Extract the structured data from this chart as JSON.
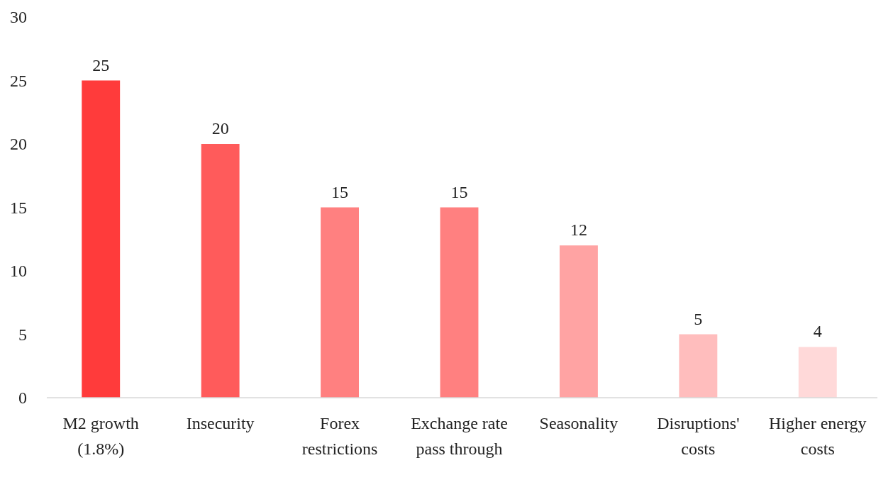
{
  "chart_data": {
    "type": "bar",
    "categories": [
      "M2 growth (1.8%)",
      "Insecurity",
      "Forex restrictions",
      "Exchange rate pass through",
      "Seasonality",
      "Disruptions' costs",
      "Higher energy costs"
    ],
    "values": [
      25,
      20,
      15,
      15,
      12,
      5,
      4
    ],
    "colors": [
      "#ff3b3b",
      "#ff5b5b",
      "#ff8080",
      "#ff8080",
      "#ffa3a3",
      "#ffbdbd",
      "#ffd9d9"
    ],
    "ylim": [
      0,
      30
    ],
    "yticks": [
      0,
      5,
      10,
      15,
      20,
      25,
      30
    ],
    "grid": false,
    "data_labels": true
  }
}
